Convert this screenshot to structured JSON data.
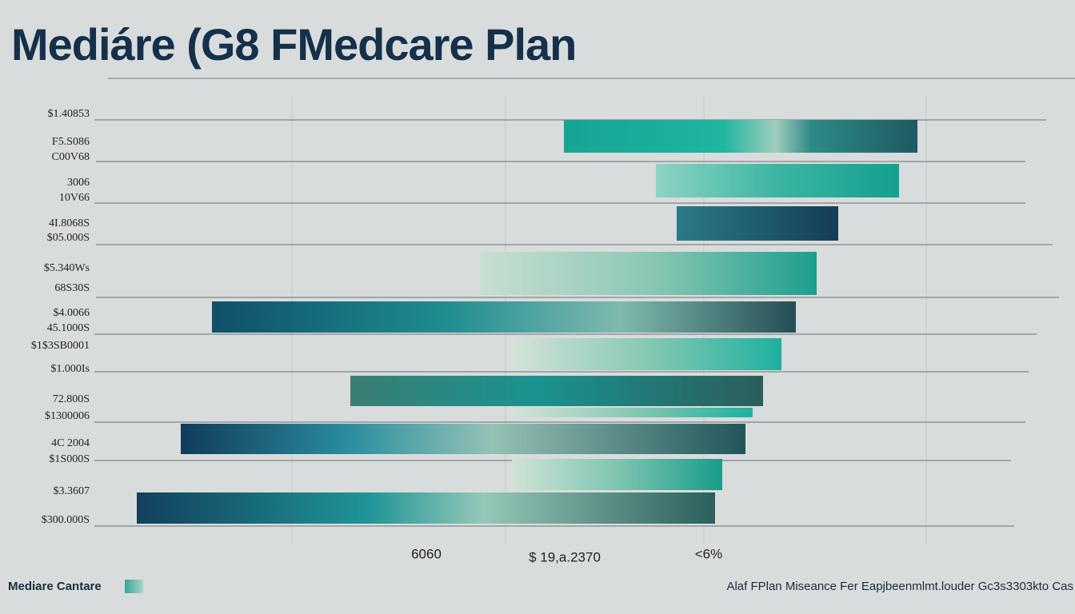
{
  "title": "Mediáre (G8 FMedcare Plan",
  "y_labels": [
    "$1.40853",
    "F5.S086",
    "C00V68",
    "3006",
    "10V66",
    "4I.8068S",
    "$05.000S",
    "$5.340Ws",
    "68S30S",
    "$4.0066",
    "45.1000S",
    "$1$3SB0001",
    "$1.000Is",
    "72.800S",
    "$1300006",
    "4C 2004",
    "$1S000S",
    "$3.3607",
    "$300.000S"
  ],
  "x_labels": [
    "6060",
    "$ 19,a.2370",
    "<6%"
  ],
  "legend": "Mediare Cantare",
  "footnote": "Alaf FPlan Miseance Fer Eapjbeenmlmt.louder Gc3s3303kto Cas"
}
